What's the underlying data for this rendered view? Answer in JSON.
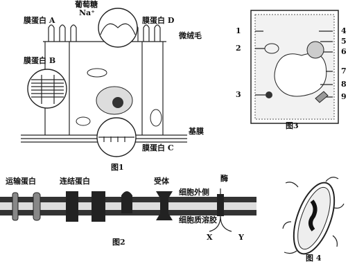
{
  "fig1": {
    "labels": {
      "glucose": "葡萄糖",
      "na": "Na⁺",
      "protein_a": "膜蛋白 A",
      "protein_d": "膜蛋白 D",
      "microvilli": "微绒毛",
      "protein_b": "膜蛋白 B",
      "basement": "基膜",
      "protein_c": "膜蛋白 C"
    },
    "caption": "图1"
  },
  "fig2": {
    "labels": {
      "transport": "运输蛋白",
      "junction": "连结蛋白",
      "receptor": "受体",
      "enzyme": "酶",
      "outside": "细胞外侧",
      "cytosol": "细胞质溶胶",
      "x": "X",
      "y": "Y"
    },
    "caption": "图2"
  },
  "fig3": {
    "numbers": [
      "1",
      "2",
      "3",
      "4",
      "5",
      "6",
      "7",
      "8",
      "9"
    ],
    "caption": "图3"
  },
  "fig4": {
    "caption": "图 4"
  }
}
